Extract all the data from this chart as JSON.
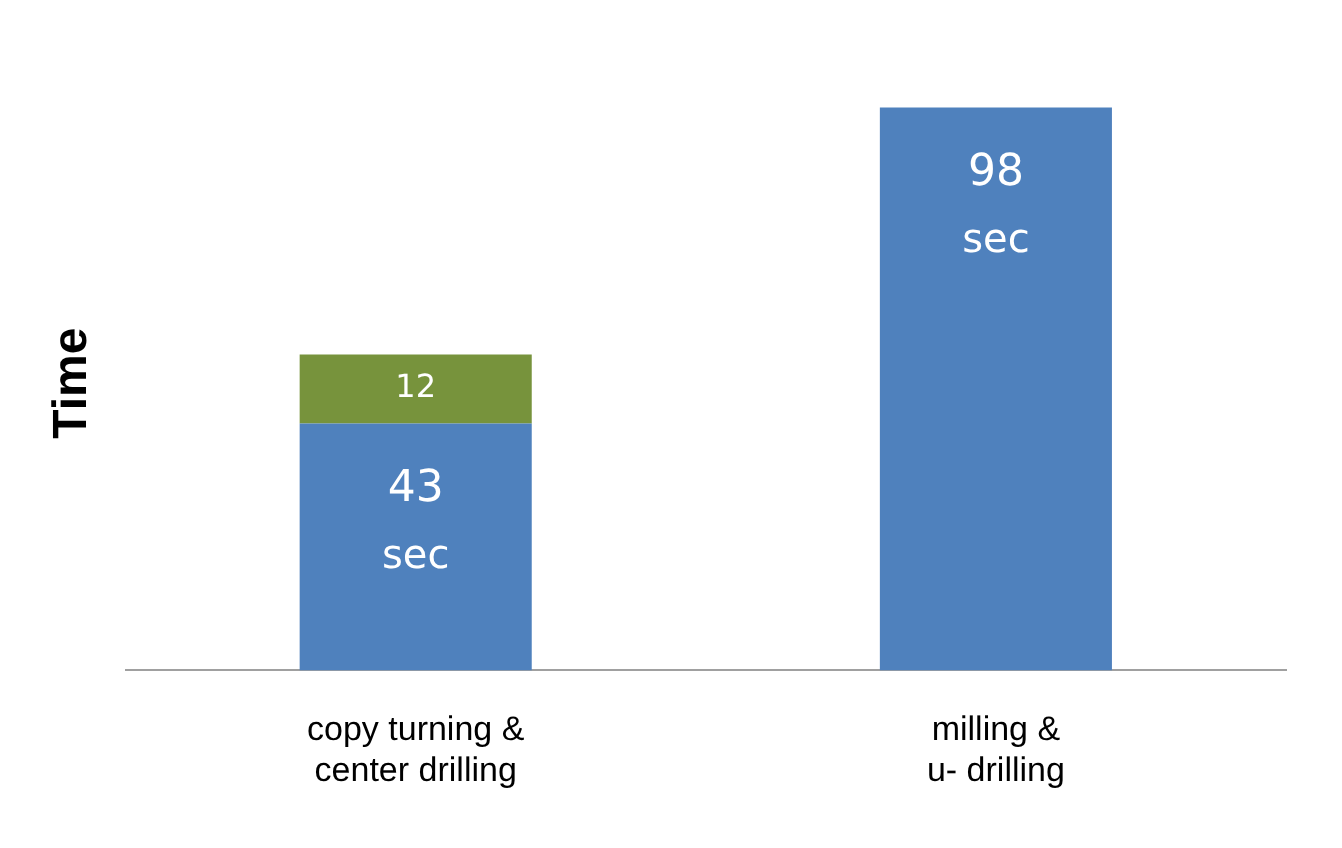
{
  "chart_data": {
    "type": "bar",
    "ylabel": "Time",
    "categories": [
      "copy turning & center drilling",
      "milling & u- drilling"
    ],
    "stacked": true,
    "series": [
      {
        "color": "#4f81bd",
        "values": [
          43,
          98
        ],
        "value_labels": [
          "43 sec",
          "98 sec"
        ]
      },
      {
        "color": "#77933c",
        "values": [
          12,
          null
        ],
        "value_labels": [
          "12",
          null
        ]
      }
    ],
    "tick_labels": "x",
    "grid": false,
    "legend": false
  }
}
